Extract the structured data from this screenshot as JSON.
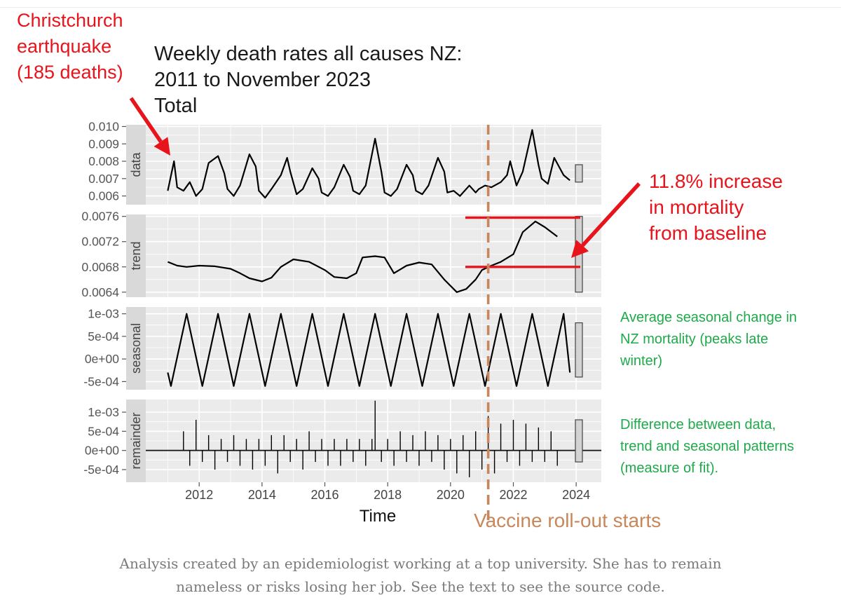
{
  "chart_data": {
    "type": "line",
    "title_lines": [
      "Weekly death rates all causes NZ:",
      "2011 to November 2023",
      "Total"
    ],
    "xlabel": "Time",
    "xlim": [
      2010.3,
      2024.8
    ],
    "x_ticks": [
      2012,
      2014,
      2016,
      2018,
      2020,
      2022,
      2024
    ],
    "x_tick_labels": [
      "2012",
      "2014",
      "2016",
      "2018",
      "2020",
      "2022",
      "2024"
    ],
    "grid": true,
    "panels": [
      {
        "name": "data",
        "ylim": [
          0.0055,
          0.0101
        ],
        "y_ticks": [
          0.006,
          0.007,
          0.008,
          0.009,
          0.01
        ],
        "y_tick_labels": [
          "0.006",
          "0.007",
          "0.008",
          "0.009",
          "0.010"
        ],
        "scale_bar_range": [
          0.0068,
          0.0078
        ],
        "x": [
          2011.0,
          2011.2,
          2011.3,
          2011.5,
          2011.7,
          2011.9,
          2012.1,
          2012.3,
          2012.6,
          2012.8,
          2012.9,
          2013.1,
          2013.3,
          2013.6,
          2013.8,
          2013.9,
          2014.1,
          2014.3,
          2014.6,
          2014.8,
          2014.9,
          2015.1,
          2015.3,
          2015.6,
          2015.8,
          2015.9,
          2016.1,
          2016.3,
          2016.6,
          2016.8,
          2016.9,
          2017.1,
          2017.3,
          2017.6,
          2017.8,
          2017.9,
          2018.1,
          2018.3,
          2018.6,
          2018.8,
          2018.9,
          2019.1,
          2019.3,
          2019.6,
          2019.8,
          2019.9,
          2020.1,
          2020.3,
          2020.6,
          2020.8,
          2020.9,
          2021.1,
          2021.3,
          2021.6,
          2021.8,
          2021.9,
          2022.1,
          2022.3,
          2022.6,
          2022.8,
          2022.9,
          2023.1,
          2023.3,
          2023.6,
          2023.8
        ],
        "y": [
          0.0063,
          0.008,
          0.0065,
          0.0063,
          0.0068,
          0.006,
          0.0064,
          0.0079,
          0.0083,
          0.0073,
          0.0064,
          0.006,
          0.0066,
          0.0084,
          0.0077,
          0.0063,
          0.0059,
          0.0064,
          0.0072,
          0.0082,
          0.0074,
          0.0061,
          0.0064,
          0.0076,
          0.007,
          0.0062,
          0.006,
          0.0065,
          0.0078,
          0.0071,
          0.0063,
          0.0061,
          0.0066,
          0.0093,
          0.0074,
          0.0062,
          0.006,
          0.0064,
          0.0078,
          0.0072,
          0.0063,
          0.0061,
          0.0066,
          0.0082,
          0.0074,
          0.0062,
          0.0063,
          0.006,
          0.0066,
          0.0062,
          0.0064,
          0.0066,
          0.0065,
          0.0068,
          0.0072,
          0.008,
          0.0066,
          0.0074,
          0.0098,
          0.0078,
          0.007,
          0.0067,
          0.0082,
          0.0072,
          0.0069
        ]
      },
      {
        "name": "trend",
        "ylim": [
          0.00632,
          0.00763
        ],
        "y_ticks": [
          0.0064,
          0.0068,
          0.0072,
          0.0076
        ],
        "y_tick_labels": [
          "0.0064",
          "0.0068",
          "0.0072",
          "0.0076"
        ],
        "scale_bar_range": [
          0.0064,
          0.0076
        ],
        "x": [
          2011.0,
          2011.3,
          2011.6,
          2012.0,
          2012.5,
          2013.0,
          2013.3,
          2013.6,
          2014.0,
          2014.3,
          2014.6,
          2015.0,
          2015.5,
          2016.0,
          2016.3,
          2016.7,
          2017.0,
          2017.2,
          2017.6,
          2017.9,
          2018.2,
          2018.6,
          2019.0,
          2019.4,
          2019.8,
          2020.2,
          2020.5,
          2020.8,
          2021.0,
          2021.3,
          2021.6,
          2022.0,
          2022.3,
          2022.7,
          2023.0,
          2023.4
        ],
        "y": [
          0.00688,
          0.00682,
          0.0068,
          0.00682,
          0.00681,
          0.00677,
          0.0067,
          0.00662,
          0.00657,
          0.00663,
          0.0068,
          0.00692,
          0.00688,
          0.00675,
          0.00664,
          0.00662,
          0.0067,
          0.00695,
          0.00697,
          0.00695,
          0.0067,
          0.00682,
          0.00687,
          0.00684,
          0.0066,
          0.0064,
          0.00645,
          0.0066,
          0.00675,
          0.00682,
          0.00688,
          0.007,
          0.00735,
          0.00752,
          0.00743,
          0.00728
        ]
      },
      {
        "name": "seasonal",
        "ylim": [
          -0.00068,
          0.00115
        ],
        "y_ticks": [
          -0.0005,
          0.0,
          0.0005,
          0.001
        ],
        "y_tick_labels": [
          "-5e-04",
          "0e+00",
          "5e-04",
          "1e-03"
        ],
        "scale_bar_range": [
          -0.0004,
          0.0008
        ],
        "x": [
          2011.0,
          2011.1,
          2011.6,
          2012.1,
          2012.6,
          2013.1,
          2013.6,
          2014.1,
          2014.6,
          2015.1,
          2015.6,
          2016.1,
          2016.6,
          2017.1,
          2017.6,
          2018.1,
          2018.6,
          2019.1,
          2019.6,
          2020.1,
          2020.6,
          2021.1,
          2021.6,
          2022.1,
          2022.6,
          2023.1,
          2023.6,
          2023.8
        ],
        "y": [
          -0.0003,
          -0.0006,
          0.001,
          -0.0006,
          0.001,
          -0.0006,
          0.001,
          -0.0006,
          0.001,
          -0.0006,
          0.001,
          -0.0006,
          0.001,
          -0.0006,
          0.001,
          -0.0006,
          0.001,
          -0.0006,
          0.001,
          -0.0006,
          0.001,
          -0.0006,
          0.001,
          -0.0006,
          0.001,
          -0.0006,
          0.001,
          -0.0003
        ]
      },
      {
        "name": "remainder",
        "ylim": [
          -0.00083,
          0.00133
        ],
        "y_ticks": [
          -0.0005,
          0.0,
          0.0005,
          0.001
        ],
        "y_tick_labels": [
          "-5e-04",
          "0e+00",
          "5e-04",
          "1e-03"
        ],
        "scale_bar_range": [
          -0.0003,
          0.0008
        ],
        "x": [
          2011.5,
          2011.7,
          2011.9,
          2012.1,
          2012.3,
          2012.5,
          2012.7,
          2012.9,
          2013.1,
          2013.3,
          2013.5,
          2013.7,
          2013.9,
          2014.1,
          2014.3,
          2014.5,
          2014.7,
          2014.9,
          2015.1,
          2015.3,
          2015.5,
          2015.7,
          2015.9,
          2016.1,
          2016.3,
          2016.5,
          2016.7,
          2016.9,
          2017.1,
          2017.3,
          2017.5,
          2017.6,
          2017.8,
          2018.0,
          2018.2,
          2018.4,
          2018.6,
          2018.8,
          2019.0,
          2019.2,
          2019.4,
          2019.6,
          2019.8,
          2020.0,
          2020.2,
          2020.4,
          2020.6,
          2020.8,
          2021.0,
          2021.2,
          2021.4,
          2021.6,
          2021.8,
          2022.0,
          2022.2,
          2022.4,
          2022.6,
          2022.8,
          2023.0,
          2023.2,
          2023.4
        ],
        "y": [
          0.0005,
          -0.0004,
          0.0008,
          -0.0003,
          0.0004,
          -0.0005,
          0.0003,
          -0.0003,
          0.0004,
          -0.0004,
          0.0003,
          -0.0005,
          0.0003,
          -0.0004,
          0.0004,
          -0.0006,
          0.0004,
          -0.0003,
          0.0003,
          -0.0005,
          0.0005,
          -0.0003,
          0.0003,
          -0.0004,
          0.0003,
          -0.0004,
          0.0003,
          -0.0003,
          0.0003,
          -0.0004,
          0.0003,
          0.0013,
          -0.0003,
          0.0003,
          -0.0004,
          0.0005,
          -0.0003,
          0.0004,
          -0.0004,
          0.0005,
          -0.0003,
          0.0004,
          -0.0005,
          0.0003,
          -0.0006,
          0.0004,
          -0.0007,
          0.0005,
          -0.0005,
          0.0009,
          -0.0006,
          0.0007,
          -0.0003,
          0.0008,
          -0.0004,
          0.0007,
          -0.0003,
          0.0006,
          -0.0003,
          0.0005,
          -0.0004
        ]
      }
    ],
    "vline": {
      "x": 2021.2,
      "color": "#c8875a",
      "label": "Vaccine roll-out starts"
    },
    "trend_hlines": [
      0.00758,
      0.0068
    ],
    "annotations": [
      {
        "lines": [
          "Christchurch",
          "earthquake",
          "(185 deaths)"
        ],
        "color": "#e8141b"
      },
      {
        "lines": [
          "11.8% increase",
          "in mortality",
          "from baseline"
        ],
        "color": "#e8141b"
      },
      {
        "lines": [
          "Average seasonal change in",
          "NZ mortality (peaks late",
          "winter)"
        ],
        "color": "#1eaa4a"
      },
      {
        "lines": [
          "Difference between data,",
          "trend and seasonal patterns",
          "(measure of fit)."
        ],
        "color": "#1eaa4a"
      }
    ],
    "colors": {
      "line": "#000000",
      "panel_bg": "#ebebeb",
      "strip_bg": "#d9d9d9",
      "grid": "#ffffff",
      "annotation_red": "#e8141b",
      "annotation_green": "#1eaa4a",
      "vline": "#c8875a"
    }
  },
  "caption": {
    "line1": "Analysis created by an epidemiologist working at a top university. She has to remain",
    "line2": "nameless or risks losing her job. See the text to see the source code."
  }
}
